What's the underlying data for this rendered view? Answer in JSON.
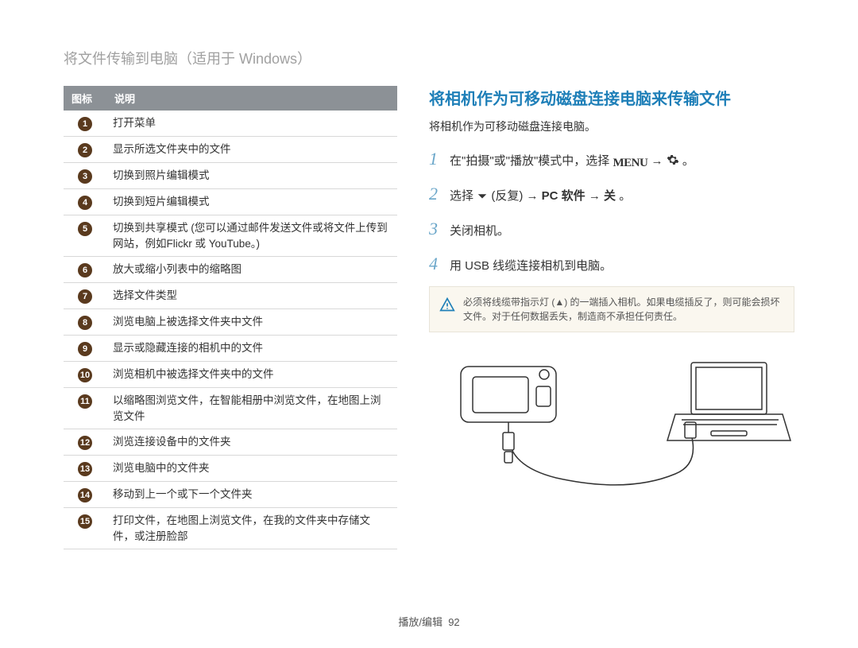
{
  "page_title": "将文件传输到电脑（适用于 Windows）",
  "table": {
    "header_icon": "图标",
    "header_desc": "说明",
    "rows": [
      {
        "n": "1",
        "desc": "打开菜单"
      },
      {
        "n": "2",
        "desc": "显示所选文件夹中的文件"
      },
      {
        "n": "3",
        "desc": "切换到照片编辑模式"
      },
      {
        "n": "4",
        "desc": "切换到短片编辑模式"
      },
      {
        "n": "5",
        "desc": "切换到共享模式 (您可以通过邮件发送文件或将文件上传到网站，例如Flickr 或 YouTube。)"
      },
      {
        "n": "6",
        "desc": "放大或缩小列表中的缩略图"
      },
      {
        "n": "7",
        "desc": "选择文件类型"
      },
      {
        "n": "8",
        "desc": "浏览电脑上被选择文件夹中文件"
      },
      {
        "n": "9",
        "desc": "显示或隐藏连接的相机中的文件"
      },
      {
        "n": "10",
        "desc": "浏览相机中被选择文件夹中的文件"
      },
      {
        "n": "11",
        "desc": "以缩略图浏览文件，在智能相册中浏览文件，在地图上浏览文件"
      },
      {
        "n": "12",
        "desc": "浏览连接设备中的文件夹"
      },
      {
        "n": "13",
        "desc": "浏览电脑中的文件夹"
      },
      {
        "n": "14",
        "desc": "移动到上一个或下一个文件夹"
      },
      {
        "n": "15",
        "desc": "打印文件，在地图上浏览文件，在我的文件夹中存储文件，或注册脸部"
      }
    ]
  },
  "right": {
    "heading": "将相机作为可移动磁盘连接电脑来传输文件",
    "subtext": "将相机作为可移动磁盘连接电脑。",
    "steps": [
      {
        "n": "1",
        "prefix": "在\"拍摄\"或\"播放\"模式中，选择 ",
        "icon1": "menu",
        "mid": " → ",
        "icon2": "gear",
        "suffix": "。"
      },
      {
        "n": "2",
        "prefix": "选择 ",
        "icon1": "down",
        "mid": " (反复) → ",
        "bold1": "PC 软件",
        "mid2": " → ",
        "bold2": "关",
        "suffix": "。"
      },
      {
        "n": "3",
        "text": "关闭相机。"
      },
      {
        "n": "4",
        "text": "用 USB 线缆连接相机到电脑。"
      }
    ],
    "info": "必须将线缆带指示灯 (▲) 的一端插入相机。如果电缆插反了，则可能会损坏文件。对于任何数据丢失，制造商不承担任何责任。"
  },
  "footer": {
    "label": "播放/编辑",
    "page": "92"
  },
  "colors": {
    "title_gray": "#a0a0a0",
    "accent_blue": "#1e7fb8",
    "step_blue": "#6aa6c9",
    "table_header_bg": "#8c9196",
    "badge_bg": "#5a3a1e",
    "info_bg": "#faf7ef",
    "info_border": "#e8e4d8"
  }
}
